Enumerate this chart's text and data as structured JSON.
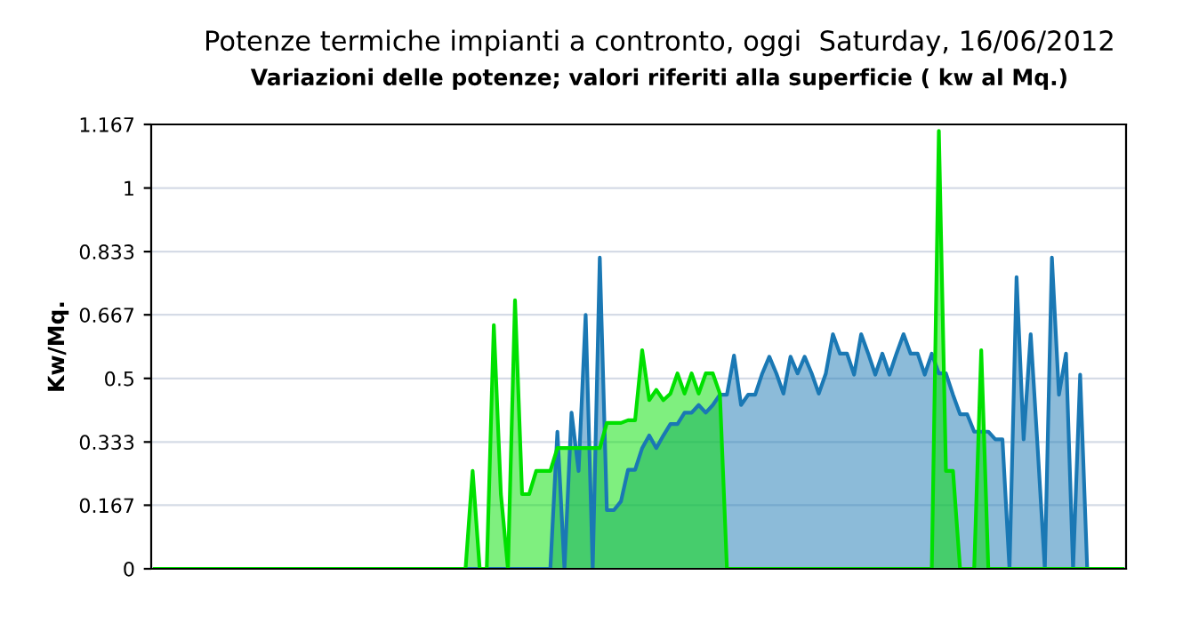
{
  "chart_data": {
    "type": "area",
    "title": "Potenze termiche impianti a contronto, oggi  Saturday, 16/06/2012",
    "subtitle": "Variazioni delle potenze; valori riferiti alla superficie ( kw al Mq.)",
    "ylabel": "Kw/Mq.",
    "categories": [
      null,
      null,
      null,
      null,
      null,
      null,
      null,
      null,
      null,
      null,
      null,
      null,
      null,
      null,
      null,
      null,
      null,
      null,
      null,
      null,
      null,
      null,
      null,
      null,
      null,
      null,
      null,
      null,
      null,
      null,
      null,
      null,
      null,
      null,
      null,
      null,
      null,
      null,
      null,
      null,
      null,
      null,
      null,
      null,
      null,
      null,
      null,
      null,
      null,
      null,
      null,
      null,
      null,
      null,
      null,
      null,
      null,
      null,
      null,
      null,
      null,
      null,
      null,
      null,
      null,
      null,
      null,
      null,
      null,
      null,
      null,
      null,
      null,
      null,
      null,
      null,
      null,
      null,
      null,
      null,
      null,
      null,
      null,
      null,
      null,
      null,
      null,
      null,
      null,
      null,
      null,
      null,
      null,
      null,
      null,
      null,
      null,
      null,
      null,
      null,
      null,
      null,
      null,
      null,
      null,
      null,
      null,
      null,
      null,
      null,
      null,
      null,
      null,
      null,
      null,
      null,
      null,
      null,
      null,
      null,
      null,
      null,
      null,
      null,
      null,
      null,
      null,
      null,
      null,
      null,
      null,
      null,
      null,
      null,
      null,
      null,
      null,
      null
    ],
    "series": [
      {
        "color": "#1a78b4",
        "values": [
          0,
          0,
          0,
          0,
          0,
          0,
          0,
          0,
          0,
          0,
          0,
          0,
          0,
          0,
          0,
          0,
          0,
          0,
          0,
          0,
          0,
          0,
          0,
          0,
          0,
          0,
          0,
          0,
          0,
          0,
          0,
          0,
          0,
          0,
          0,
          0,
          0,
          0,
          0,
          0,
          0,
          0,
          0,
          0,
          0,
          0,
          0,
          0,
          0,
          0,
          0,
          0,
          0,
          0,
          0,
          0,
          0,
          0.36,
          0,
          0.41,
          0.257,
          0.667,
          0,
          0.817,
          0.154,
          0.154,
          0.177,
          0.26,
          0.26,
          0.317,
          0.35,
          0.317,
          0.35,
          0.38,
          0.38,
          0.41,
          0.41,
          0.43,
          0.41,
          0.43,
          0.457,
          0.457,
          0.56,
          0.43,
          0.457,
          0.457,
          0.513,
          0.557,
          0.513,
          0.46,
          0.557,
          0.513,
          0.557,
          0.513,
          0.46,
          0.513,
          0.616,
          0.565,
          0.565,
          0.51,
          0.616,
          0.565,
          0.51,
          0.565,
          0.51,
          0.565,
          0.616,
          0.565,
          0.565,
          0.51,
          0.565,
          0.513,
          0.513,
          0.457,
          0.406,
          0.406,
          0.36,
          0.36,
          0.36,
          0.34,
          0.34,
          0,
          0.766,
          0.34,
          0.616,
          0.313,
          0,
          0.817,
          0.457,
          0.565,
          0,
          0.51,
          0,
          0,
          0,
          0,
          0,
          0
        ]
      },
      {
        "color": "#00e000",
        "values": [
          0,
          0,
          0,
          0,
          0,
          0,
          0,
          0,
          0,
          0,
          0,
          0,
          0,
          0,
          0,
          0,
          0,
          0,
          0,
          0,
          0,
          0,
          0,
          0,
          0,
          0,
          0,
          0,
          0,
          0,
          0,
          0,
          0,
          0,
          0,
          0,
          0,
          0,
          0,
          0,
          0,
          0,
          0,
          0,
          0,
          0.257,
          0,
          0,
          0.64,
          0.196,
          0,
          0.705,
          0.196,
          0.196,
          0.257,
          0.257,
          0.257,
          0.317,
          0.317,
          0.317,
          0.317,
          0.317,
          0.317,
          0.317,
          0.383,
          0.383,
          0.383,
          0.39,
          0.39,
          0.574,
          0.443,
          0.47,
          0.443,
          0.46,
          0.513,
          0.46,
          0.513,
          0.46,
          0.513,
          0.513,
          0.46,
          0,
          0,
          0,
          0,
          0,
          0,
          0,
          0,
          0,
          0,
          0,
          0,
          0,
          0,
          0,
          0,
          0,
          0,
          0,
          0,
          0,
          0,
          0,
          0,
          0,
          0,
          0,
          0,
          0,
          0,
          1.15,
          0.257,
          0.257,
          0,
          0,
          0,
          0.574,
          0,
          0,
          0,
          0,
          0,
          0,
          0,
          0,
          0,
          0,
          0,
          0,
          0,
          0,
          0,
          0,
          0,
          0,
          0,
          0
        ]
      }
    ],
    "ylim": [
      0,
      1.167
    ],
    "yticks": [
      0,
      0.167,
      0.333,
      0.5,
      0.667,
      0.833,
      1,
      1.167
    ],
    "grid": "y",
    "tick_labels": "y",
    "legend": false
  }
}
